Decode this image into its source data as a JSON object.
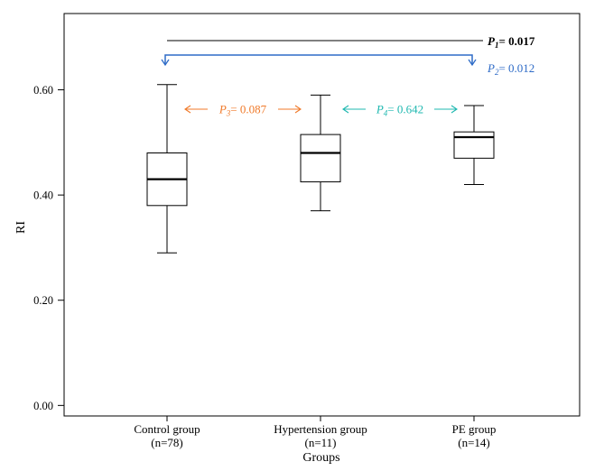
{
  "chart_data": {
    "type": "box",
    "title": "",
    "xlabel": "Groups",
    "ylabel": "RI",
    "ylim": [
      -0.02,
      0.745
    ],
    "yticks": [
      0.0,
      0.2,
      0.4,
      0.6
    ],
    "ytick_labels": [
      "0.00",
      "0.20",
      "0.40",
      "0.60"
    ],
    "categories": [
      {
        "name": "Control group",
        "n_label": "(n=78)"
      },
      {
        "name": "Hypertension group",
        "n_label": "(n=11)"
      },
      {
        "name": "PE group",
        "n_label": "(n=14)"
      }
    ],
    "boxes": [
      {
        "whisker_low": 0.29,
        "q1": 0.38,
        "median": 0.43,
        "q3": 0.48,
        "whisker_high": 0.61
      },
      {
        "whisker_low": 0.37,
        "q1": 0.425,
        "median": 0.48,
        "q3": 0.515,
        "whisker_high": 0.59
      },
      {
        "whisker_low": 0.42,
        "q1": 0.47,
        "median": 0.51,
        "q3": 0.52,
        "whisker_high": 0.57
      }
    ],
    "annotations": [
      {
        "label": "P",
        "sub": "1",
        "eq": "= 0.017",
        "from": 0,
        "to": 2,
        "color": "#000000",
        "style": "line"
      },
      {
        "label": "P",
        "sub": "2",
        "eq": "= 0.012",
        "from": 0,
        "to": 2,
        "color": "#2e6bc7",
        "style": "bracket"
      },
      {
        "label": "P",
        "sub": "3",
        "eq": "= 0.087",
        "from": 0,
        "to": 1,
        "color": "#f07a2a",
        "style": "arrows"
      },
      {
        "label": "P",
        "sub": "4",
        "eq": "= 0.642",
        "from": 1,
        "to": 2,
        "color": "#1fb8b0",
        "style": "arrows"
      }
    ]
  }
}
